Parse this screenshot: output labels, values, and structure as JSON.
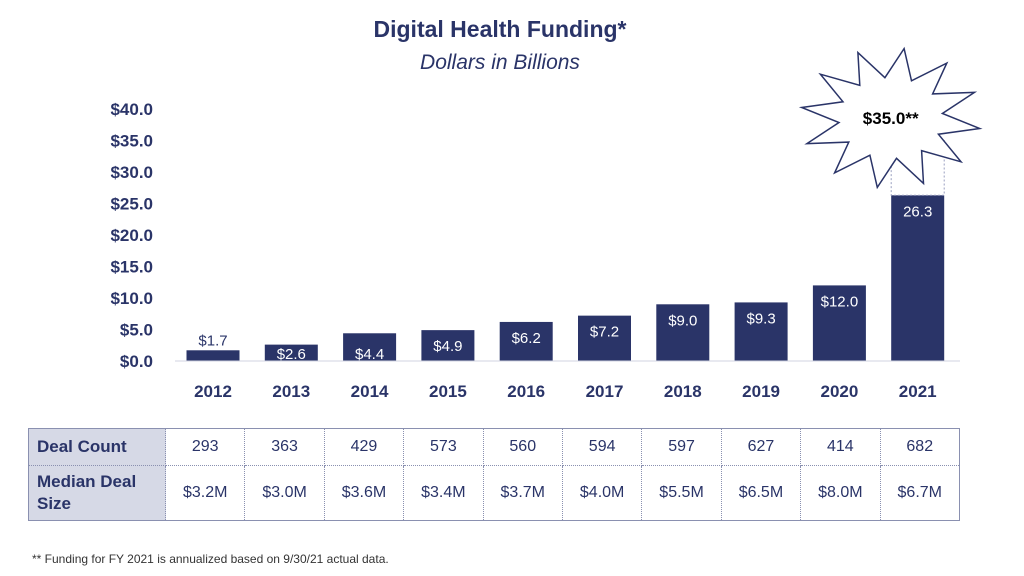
{
  "header": {
    "title": "Digital Health Funding*",
    "subtitle": "Dollars in Billions"
  },
  "colors": {
    "bar": "#2a3468",
    "text": "#2a3468",
    "table_header_bg": "#d6d9e6"
  },
  "chart_data": {
    "type": "bar",
    "title": "Digital Health Funding*",
    "subtitle": "Dollars in Billions",
    "categories": [
      "2012",
      "2013",
      "2014",
      "2015",
      "2016",
      "2017",
      "2018",
      "2019",
      "2020",
      "2021"
    ],
    "values": [
      1.7,
      2.6,
      4.4,
      4.9,
      6.2,
      7.2,
      9.0,
      9.3,
      12.0,
      26.3
    ],
    "data_labels": [
      "$1.7",
      "$2.6",
      "$4.4",
      "$4.9",
      "$6.2",
      "$7.2",
      "$9.0",
      "$9.3",
      "$12.0",
      "26.3"
    ],
    "yticks": [
      "$0.0",
      "$5.0",
      "$10.0",
      "$15.0",
      "$20.0",
      "$25.0",
      "$30.0",
      "$35.0",
      "$40.0"
    ],
    "ylim": [
      0,
      40
    ],
    "grid": false,
    "annotation": {
      "category": "2021",
      "text": "$35.0**",
      "value": 35.0,
      "shape": "starburst"
    }
  },
  "table": {
    "rows": [
      {
        "label": "Deal Count",
        "values": [
          "293",
          "363",
          "429",
          "573",
          "560",
          "594",
          "597",
          "627",
          "414",
          "682"
        ]
      },
      {
        "label": "Median Deal Size",
        "values": [
          "$3.2M",
          "$3.0M",
          "$3.6M",
          "$3.4M",
          "$3.7M",
          "$4.0M",
          "$5.5M",
          "$6.5M",
          "$8.0M",
          "$6.7M"
        ]
      }
    ]
  },
  "footnote": "** Funding for FY 2021 is annualized based on 9/30/21 actual data."
}
